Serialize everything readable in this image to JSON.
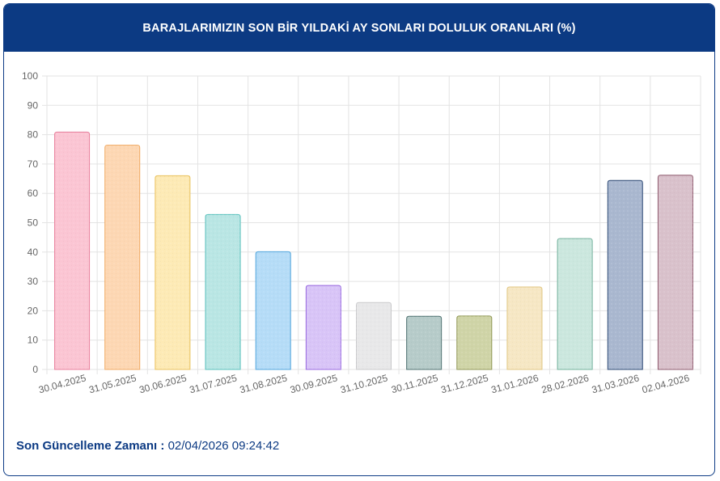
{
  "header": {
    "title": "BARAJLARIMIZIN SON BİR YILDAKİ AY SONLARI DOLULUK ORANLARI (%)"
  },
  "footer": {
    "label": "Son Güncelleme Zamanı :",
    "value": "02/04/2026 09:24:42"
  },
  "colors": {
    "header_bg": "#0c3a83",
    "footer_text": "#0c3a83",
    "grid": "#e3e3e3"
  },
  "chart_data": {
    "type": "bar",
    "title": "BARAJLARIMIZIN SON BİR YILDAKİ AY SONLARI DOLULUK ORANLARI (%)",
    "xlabel": "",
    "ylabel": "",
    "ylim": [
      0,
      100
    ],
    "yticks": [
      0,
      10,
      20,
      30,
      40,
      50,
      60,
      70,
      80,
      90,
      100
    ],
    "grid": true,
    "legend": "none",
    "categories": [
      "30.04.2025",
      "31.05.2025",
      "30.06.2025",
      "31.07.2025",
      "31.08.2025",
      "30.09.2025",
      "31.10.2025",
      "30.11.2025",
      "31.12.2025",
      "31.01.2026",
      "28.02.2026",
      "31.03.2026",
      "02.04.2026"
    ],
    "values": [
      80.9,
      76.4,
      66.0,
      52.8,
      40.1,
      28.6,
      22.8,
      18.1,
      18.2,
      28.1,
      44.6,
      64.4,
      66.2
    ],
    "bar_colors": [
      {
        "fill": "#fbc5d3",
        "stroke": "#e87e9b"
      },
      {
        "fill": "#fdd7b3",
        "stroke": "#f0a860"
      },
      {
        "fill": "#fdeab5",
        "stroke": "#e9c15c"
      },
      {
        "fill": "#b9e6e4",
        "stroke": "#56bfbb"
      },
      {
        "fill": "#b5dcf7",
        "stroke": "#4fa4dc"
      },
      {
        "fill": "#d8c4f7",
        "stroke": "#9868e0"
      },
      {
        "fill": "#e8e8e9",
        "stroke": "#c9c9cb"
      },
      {
        "fill": "#b6cbc9",
        "stroke": "#4e7170"
      },
      {
        "fill": "#cfd4a7",
        "stroke": "#8f9653"
      },
      {
        "fill": "#f6e7c4",
        "stroke": "#e0c681"
      },
      {
        "fill": "#cbe7de",
        "stroke": "#71b09b"
      },
      {
        "fill": "#a9b7cf",
        "stroke": "#2c4874"
      },
      {
        "fill": "#d9c1cb",
        "stroke": "#8f5b6f"
      }
    ]
  }
}
